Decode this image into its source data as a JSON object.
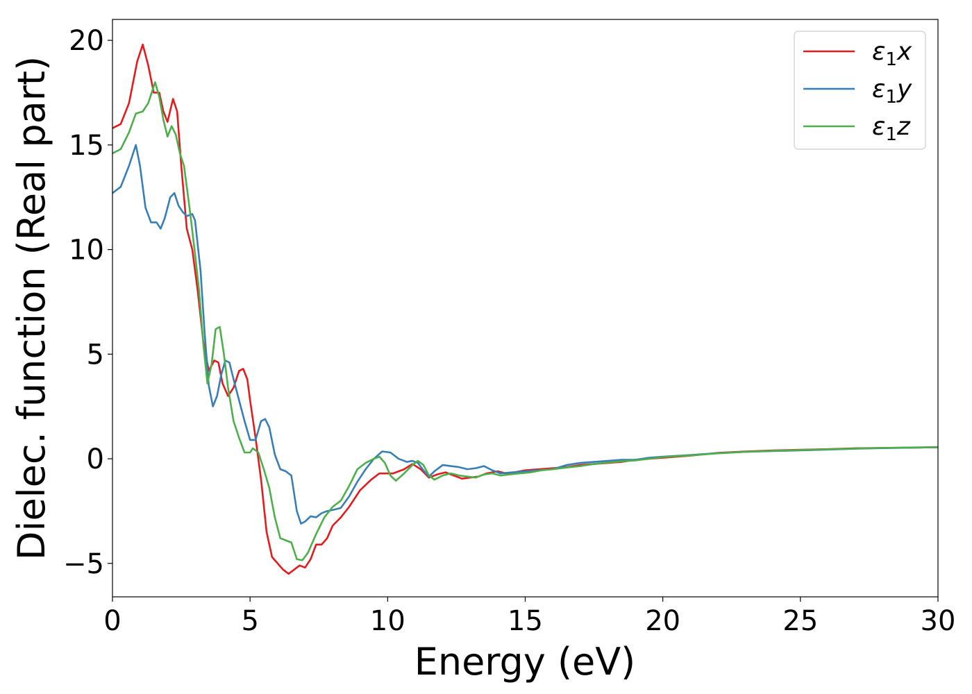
{
  "chart_data": {
    "type": "line",
    "title": "",
    "xlabel": "Energy (eV)",
    "ylabel": "Dielec. function (Real part)",
    "xlim": [
      0,
      30
    ],
    "ylim": [
      -6.6,
      21
    ],
    "xticks": [
      0,
      5,
      10,
      15,
      20,
      25,
      30
    ],
    "xtick_labels": [
      "0",
      "5",
      "10",
      "15",
      "20",
      "25",
      "30"
    ],
    "yticks": [
      -5,
      0,
      5,
      10,
      15,
      20
    ],
    "ytick_labels": [
      "−5",
      "0",
      "5",
      "10",
      "15",
      "20"
    ],
    "grid": false,
    "legend_position": "top-right",
    "series": [
      {
        "name": "ε1x",
        "label_base": "ε",
        "label_sub": "1",
        "label_var": "x",
        "color": "#e41a1c",
        "points": [
          [
            0,
            15.8
          ],
          [
            0.3,
            16.0
          ],
          [
            0.6,
            17.0
          ],
          [
            0.9,
            19.0
          ],
          [
            1.1,
            19.8
          ],
          [
            1.3,
            18.8
          ],
          [
            1.5,
            17.5
          ],
          [
            1.7,
            17.5
          ],
          [
            1.85,
            16.6
          ],
          [
            2.0,
            16.1
          ],
          [
            2.2,
            17.2
          ],
          [
            2.35,
            16.6
          ],
          [
            2.5,
            14.0
          ],
          [
            2.7,
            11.0
          ],
          [
            2.9,
            10.0
          ],
          [
            3.1,
            8.0
          ],
          [
            3.3,
            5.6
          ],
          [
            3.5,
            4.2
          ],
          [
            3.7,
            4.7
          ],
          [
            3.85,
            4.6
          ],
          [
            4.0,
            3.6
          ],
          [
            4.2,
            3.0
          ],
          [
            4.4,
            3.4
          ],
          [
            4.6,
            4.2
          ],
          [
            4.75,
            4.3
          ],
          [
            4.9,
            3.8
          ],
          [
            5.0,
            2.8
          ],
          [
            5.2,
            1.0
          ],
          [
            5.4,
            -1.0
          ],
          [
            5.6,
            -3.5
          ],
          [
            5.8,
            -4.7
          ],
          [
            6.0,
            -5.0
          ],
          [
            6.2,
            -5.3
          ],
          [
            6.4,
            -5.5
          ],
          [
            6.6,
            -5.3
          ],
          [
            6.8,
            -5.1
          ],
          [
            7.0,
            -5.2
          ],
          [
            7.2,
            -4.8
          ],
          [
            7.4,
            -4.1
          ],
          [
            7.6,
            -4.1
          ],
          [
            7.8,
            -3.8
          ],
          [
            8.0,
            -3.2
          ],
          [
            8.3,
            -2.8
          ],
          [
            8.6,
            -2.3
          ],
          [
            9.0,
            -1.5
          ],
          [
            9.4,
            -1.0
          ],
          [
            9.7,
            -0.7
          ],
          [
            10.2,
            -0.7
          ],
          [
            10.6,
            -0.5
          ],
          [
            10.9,
            -0.25
          ],
          [
            11.2,
            -0.5
          ],
          [
            11.5,
            -0.9
          ],
          [
            11.8,
            -0.75
          ],
          [
            12.1,
            -0.65
          ],
          [
            12.4,
            -0.8
          ],
          [
            12.7,
            -0.95
          ],
          [
            13.0,
            -0.9
          ],
          [
            13.3,
            -0.85
          ],
          [
            13.6,
            -0.7
          ],
          [
            14.0,
            -0.6
          ],
          [
            14.3,
            -0.7
          ],
          [
            14.6,
            -0.65
          ],
          [
            15.0,
            -0.55
          ],
          [
            15.5,
            -0.5
          ],
          [
            16.0,
            -0.45
          ],
          [
            16.5,
            -0.4
          ],
          [
            17.0,
            -0.3
          ],
          [
            17.5,
            -0.25
          ],
          [
            18.0,
            -0.2
          ],
          [
            18.5,
            -0.15
          ],
          [
            19.0,
            -0.05
          ],
          [
            19.5,
            0.0
          ],
          [
            20.0,
            0.05
          ],
          [
            21.0,
            0.15
          ],
          [
            22.0,
            0.28
          ],
          [
            23.0,
            0.35
          ],
          [
            24.0,
            0.4
          ],
          [
            25.0,
            0.43
          ],
          [
            26.0,
            0.46
          ],
          [
            27.0,
            0.5
          ],
          [
            28.0,
            0.52
          ],
          [
            29.0,
            0.53
          ],
          [
            30.0,
            0.55
          ]
        ]
      },
      {
        "name": "ε1y",
        "label_base": "ε",
        "label_sub": "1",
        "label_var": "y",
        "color": "#377eb8",
        "points": [
          [
            0,
            12.7
          ],
          [
            0.3,
            13.0
          ],
          [
            0.6,
            14.0
          ],
          [
            0.85,
            15.0
          ],
          [
            1.0,
            14.0
          ],
          [
            1.2,
            12.0
          ],
          [
            1.4,
            11.3
          ],
          [
            1.6,
            11.3
          ],
          [
            1.75,
            11.0
          ],
          [
            1.9,
            11.5
          ],
          [
            2.1,
            12.5
          ],
          [
            2.25,
            12.7
          ],
          [
            2.4,
            12.1
          ],
          [
            2.55,
            11.8
          ],
          [
            2.7,
            11.6
          ],
          [
            2.9,
            11.7
          ],
          [
            3.0,
            11.4
          ],
          [
            3.2,
            9.0
          ],
          [
            3.35,
            6.0
          ],
          [
            3.5,
            3.5
          ],
          [
            3.65,
            2.5
          ],
          [
            3.8,
            3.0
          ],
          [
            3.95,
            4.0
          ],
          [
            4.1,
            4.7
          ],
          [
            4.25,
            4.6
          ],
          [
            4.4,
            3.8
          ],
          [
            4.6,
            2.8
          ],
          [
            4.8,
            1.8
          ],
          [
            5.0,
            0.9
          ],
          [
            5.2,
            0.9
          ],
          [
            5.4,
            1.8
          ],
          [
            5.55,
            1.9
          ],
          [
            5.7,
            1.5
          ],
          [
            5.9,
            0.2
          ],
          [
            6.1,
            -0.5
          ],
          [
            6.3,
            -0.6
          ],
          [
            6.5,
            -0.8
          ],
          [
            6.7,
            -2.5
          ],
          [
            6.85,
            -3.1
          ],
          [
            7.0,
            -3.0
          ],
          [
            7.2,
            -2.75
          ],
          [
            7.4,
            -2.8
          ],
          [
            7.6,
            -2.6
          ],
          [
            7.8,
            -2.5
          ],
          [
            8.0,
            -2.45
          ],
          [
            8.3,
            -2.35
          ],
          [
            8.6,
            -1.8
          ],
          [
            8.9,
            -1.1
          ],
          [
            9.2,
            -0.5
          ],
          [
            9.5,
            0.0
          ],
          [
            9.8,
            0.35
          ],
          [
            10.1,
            0.3
          ],
          [
            10.4,
            0.0
          ],
          [
            10.7,
            -0.15
          ],
          [
            10.9,
            -0.1
          ],
          [
            11.1,
            -0.2
          ],
          [
            11.3,
            -0.55
          ],
          [
            11.5,
            -0.85
          ],
          [
            11.7,
            -0.6
          ],
          [
            12.0,
            -0.3
          ],
          [
            12.3,
            -0.35
          ],
          [
            12.6,
            -0.4
          ],
          [
            12.9,
            -0.5
          ],
          [
            13.2,
            -0.45
          ],
          [
            13.5,
            -0.35
          ],
          [
            13.8,
            -0.55
          ],
          [
            14.1,
            -0.7
          ],
          [
            14.5,
            -0.65
          ],
          [
            15.0,
            -0.6
          ],
          [
            15.5,
            -0.55
          ],
          [
            16.0,
            -0.5
          ],
          [
            16.5,
            -0.3
          ],
          [
            17.0,
            -0.2
          ],
          [
            17.5,
            -0.15
          ],
          [
            18.0,
            -0.1
          ],
          [
            18.5,
            -0.05
          ],
          [
            19.0,
            -0.05
          ],
          [
            19.5,
            0.05
          ],
          [
            20.0,
            0.1
          ],
          [
            21.0,
            0.18
          ],
          [
            22.0,
            0.27
          ],
          [
            23.0,
            0.33
          ],
          [
            24.0,
            0.37
          ],
          [
            25.0,
            0.4
          ],
          [
            26.0,
            0.44
          ],
          [
            27.0,
            0.48
          ],
          [
            28.0,
            0.51
          ],
          [
            29.0,
            0.53
          ],
          [
            30.0,
            0.55
          ]
        ]
      },
      {
        "name": "ε1z",
        "label_base": "ε",
        "label_sub": "1",
        "label_var": "z",
        "color": "#4daf4a",
        "points": [
          [
            0,
            14.6
          ],
          [
            0.3,
            14.8
          ],
          [
            0.6,
            15.6
          ],
          [
            0.85,
            16.5
          ],
          [
            1.1,
            16.6
          ],
          [
            1.3,
            17.0
          ],
          [
            1.55,
            18.0
          ],
          [
            1.7,
            17.3
          ],
          [
            1.85,
            16.2
          ],
          [
            2.0,
            15.4
          ],
          [
            2.15,
            15.9
          ],
          [
            2.3,
            15.5
          ],
          [
            2.45,
            14.6
          ],
          [
            2.6,
            14.0
          ],
          [
            2.8,
            12.0
          ],
          [
            3.0,
            9.8
          ],
          [
            3.15,
            8.0
          ],
          [
            3.3,
            5.5
          ],
          [
            3.45,
            3.6
          ],
          [
            3.6,
            4.5
          ],
          [
            3.75,
            6.2
          ],
          [
            3.9,
            6.3
          ],
          [
            4.05,
            5.0
          ],
          [
            4.2,
            3.4
          ],
          [
            4.4,
            1.8
          ],
          [
            4.6,
            1.0
          ],
          [
            4.8,
            0.3
          ],
          [
            5.0,
            0.3
          ],
          [
            5.1,
            0.5
          ],
          [
            5.3,
            0.3
          ],
          [
            5.5,
            -0.5
          ],
          [
            5.7,
            -1.4
          ],
          [
            5.9,
            -2.8
          ],
          [
            6.1,
            -3.8
          ],
          [
            6.3,
            -3.9
          ],
          [
            6.5,
            -4.0
          ],
          [
            6.7,
            -4.8
          ],
          [
            6.9,
            -4.85
          ],
          [
            7.1,
            -4.5
          ],
          [
            7.4,
            -3.6
          ],
          [
            7.7,
            -2.8
          ],
          [
            8.0,
            -2.3
          ],
          [
            8.3,
            -2.0
          ],
          [
            8.6,
            -1.3
          ],
          [
            8.9,
            -0.5
          ],
          [
            9.2,
            -0.2
          ],
          [
            9.5,
            0.0
          ],
          [
            9.7,
            0.1
          ],
          [
            9.9,
            -0.2
          ],
          [
            10.1,
            -0.8
          ],
          [
            10.3,
            -1.05
          ],
          [
            10.6,
            -0.7
          ],
          [
            10.9,
            -0.3
          ],
          [
            11.1,
            -0.1
          ],
          [
            11.3,
            -0.3
          ],
          [
            11.5,
            -0.8
          ],
          [
            11.7,
            -1.0
          ],
          [
            12.0,
            -0.8
          ],
          [
            12.3,
            -0.7
          ],
          [
            12.6,
            -0.8
          ],
          [
            12.9,
            -0.85
          ],
          [
            13.2,
            -0.9
          ],
          [
            13.5,
            -0.75
          ],
          [
            13.8,
            -0.7
          ],
          [
            14.1,
            -0.8
          ],
          [
            14.4,
            -0.75
          ],
          [
            14.8,
            -0.7
          ],
          [
            15.2,
            -0.65
          ],
          [
            15.6,
            -0.55
          ],
          [
            16.0,
            -0.5
          ],
          [
            16.5,
            -0.42
          ],
          [
            17.0,
            -0.35
          ],
          [
            17.5,
            -0.25
          ],
          [
            18.0,
            -0.18
          ],
          [
            18.5,
            -0.12
          ],
          [
            19.0,
            -0.08
          ],
          [
            19.5,
            0.0
          ],
          [
            20.0,
            0.08
          ],
          [
            21.0,
            0.16
          ],
          [
            22.0,
            0.26
          ],
          [
            23.0,
            0.33
          ],
          [
            24.0,
            0.38
          ],
          [
            25.0,
            0.42
          ],
          [
            26.0,
            0.45
          ],
          [
            27.0,
            0.49
          ],
          [
            28.0,
            0.52
          ],
          [
            29.0,
            0.54
          ],
          [
            30.0,
            0.56
          ]
        ]
      }
    ]
  }
}
